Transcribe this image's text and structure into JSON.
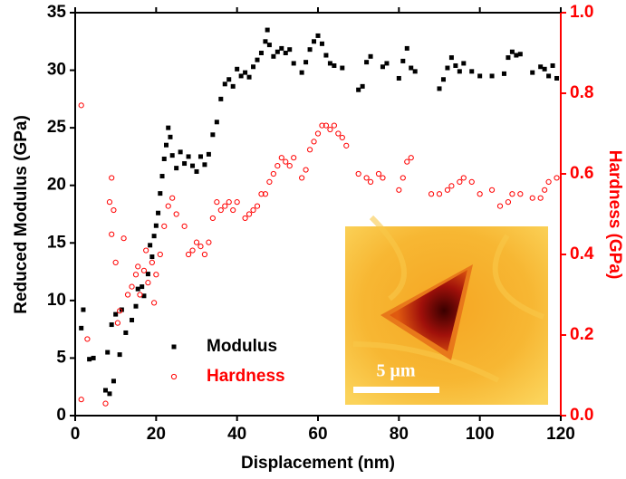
{
  "chart_data": {
    "type": "scatter",
    "x_label": "Displacement (nm)",
    "y_label": "Reduced Modulus (GPa)",
    "y2_label": "Hardness (GPa)",
    "xlim": [
      0,
      120
    ],
    "xticks": [
      0,
      20,
      40,
      60,
      80,
      100,
      120
    ],
    "ylim": [
      0,
      35
    ],
    "yticks": [
      0,
      5,
      10,
      15,
      20,
      25,
      30,
      35
    ],
    "y2lim": [
      0,
      1
    ],
    "y2ticks": [
      {
        "value": 0,
        "label": "0.0"
      },
      {
        "value": 0.2,
        "label": "0.2"
      },
      {
        "value": 0.4,
        "label": "0.4"
      },
      {
        "value": 0.6,
        "label": "0.6"
      },
      {
        "value": 0.8,
        "label": "0.8"
      },
      {
        "value": 1,
        "label": "1.0"
      }
    ],
    "y2_color": "#ff0000",
    "legend": "lower left",
    "inset_scale_label": "5 μm",
    "series": [
      {
        "name": "Modulus",
        "color": "#000000",
        "marker": "square",
        "x": [
          1.5,
          2,
          3.5,
          4.5,
          7.5,
          8,
          8.5,
          9,
          9.5,
          10,
          11,
          11.5,
          12.5,
          14,
          15,
          15.5,
          16.5,
          17,
          18,
          18.5,
          19,
          19.5,
          20,
          20.5,
          21,
          21.5,
          22,
          22.5,
          23,
          23.5,
          24,
          25,
          26,
          27,
          28,
          29,
          30,
          31,
          32,
          33,
          34,
          35,
          36,
          37,
          38,
          39,
          40,
          41,
          42,
          43,
          44,
          45,
          46,
          47,
          47.5,
          48,
          49,
          50,
          51,
          52,
          53,
          54,
          56,
          57,
          58,
          59,
          60,
          61,
          62,
          63,
          64,
          66,
          70,
          71,
          72,
          73,
          76,
          77,
          80,
          81,
          82,
          83,
          84,
          90,
          91,
          92,
          93,
          94,
          95,
          96,
          98,
          100,
          103,
          106,
          107,
          108,
          109,
          110,
          113,
          115,
          116,
          117,
          118,
          119
        ],
        "values": [
          7.6,
          9.2,
          4.9,
          5,
          2.2,
          5.5,
          1.9,
          7.9,
          3,
          8.8,
          5.3,
          9.2,
          7.2,
          8.3,
          9.5,
          11,
          11.2,
          10.4,
          12.3,
          14.8,
          13.8,
          15.6,
          16.5,
          17.6,
          19.3,
          20.8,
          22.3,
          23.5,
          25,
          24.2,
          22.6,
          21.5,
          22.9,
          21.9,
          22.5,
          21.7,
          21.2,
          22.5,
          21.8,
          22.7,
          24.4,
          25.5,
          27.5,
          28.8,
          29.2,
          28.6,
          30.1,
          29.5,
          29.8,
          29.4,
          30.3,
          30.9,
          31.5,
          32.5,
          33.5,
          32.2,
          31.2,
          31.6,
          31.9,
          31.5,
          31.8,
          30.6,
          29.8,
          30.7,
          31.8,
          32.5,
          33,
          32.3,
          31.3,
          30.6,
          30.4,
          30.2,
          28.3,
          28.6,
          30.7,
          31.2,
          30.3,
          30.6,
          29.3,
          30.8,
          31.9,
          30.2,
          29.9,
          28.4,
          29.2,
          30.2,
          31.1,
          30.4,
          29.9,
          30.6,
          29.9,
          29.5,
          29.5,
          29.7,
          31.1,
          31.6,
          31.3,
          31.4,
          29.8,
          30.3,
          30.1,
          29.5,
          30.4,
          29.3
        ]
      },
      {
        "name": "Hardness",
        "color": "#ff0000",
        "marker": "circle",
        "axis": "y2",
        "x": [
          1.5,
          1.5,
          3,
          7.5,
          8.5,
          9,
          9.5,
          10,
          9,
          10.5,
          11,
          12,
          13,
          14,
          15,
          15.5,
          16,
          17,
          17.5,
          18,
          19,
          19.5,
          20,
          21,
          22,
          23,
          24,
          25,
          27,
          28,
          29,
          30,
          31,
          32,
          33,
          34,
          35,
          36,
          37,
          38,
          39,
          40,
          42,
          43,
          44,
          45,
          46,
          47,
          48,
          49,
          50,
          51,
          52,
          53,
          54,
          56,
          57,
          58,
          59,
          60,
          61,
          62,
          63,
          64,
          65,
          66,
          67,
          70,
          72,
          73,
          75,
          76,
          80,
          81,
          82,
          83,
          88,
          90,
          92,
          93,
          95,
          96,
          98,
          100,
          103,
          105,
          107,
          108,
          110,
          113,
          115,
          116,
          117,
          119
        ],
        "values": [
          0.77,
          0.04,
          0.19,
          0.03,
          0.53,
          0.45,
          0.51,
          0.38,
          0.59,
          0.23,
          0.26,
          0.44,
          0.3,
          0.32,
          0.35,
          0.37,
          0.3,
          0.36,
          0.41,
          0.33,
          0.38,
          0.28,
          0.35,
          0.4,
          0.47,
          0.52,
          0.54,
          0.5,
          0.47,
          0.4,
          0.41,
          0.43,
          0.42,
          0.4,
          0.43,
          0.49,
          0.53,
          0.51,
          0.52,
          0.53,
          0.51,
          0.53,
          0.49,
          0.5,
          0.51,
          0.52,
          0.55,
          0.55,
          0.58,
          0.6,
          0.62,
          0.64,
          0.63,
          0.62,
          0.64,
          0.59,
          0.61,
          0.66,
          0.68,
          0.7,
          0.72,
          0.72,
          0.71,
          0.72,
          0.7,
          0.69,
          0.67,
          0.6,
          0.59,
          0.58,
          0.6,
          0.59,
          0.56,
          0.59,
          0.63,
          0.64,
          0.55,
          0.55,
          0.56,
          0.57,
          0.58,
          0.59,
          0.58,
          0.55,
          0.56,
          0.52,
          0.53,
          0.55,
          0.55,
          0.54,
          0.54,
          0.56,
          0.58,
          0.59
        ]
      }
    ]
  }
}
